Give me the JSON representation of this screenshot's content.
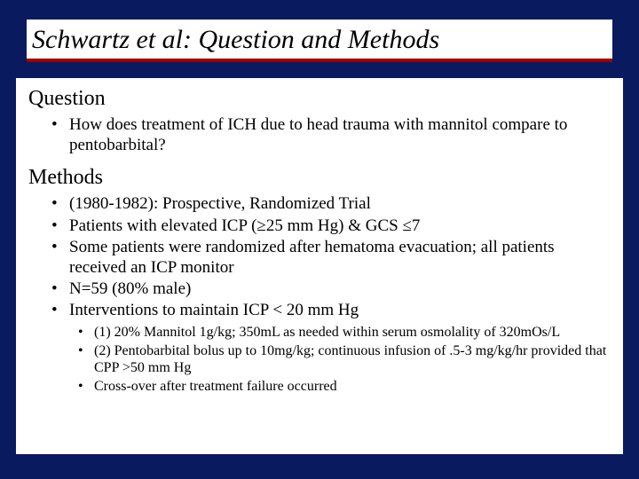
{
  "colors": {
    "background": "#0a1a5e",
    "panel": "#ffffff",
    "rule": "#a00000",
    "text": "#000000"
  },
  "title": "Schwartz et al: Question and Methods",
  "sections": [
    {
      "heading": "Question",
      "bullets": [
        "How does treatment of ICH due to head trauma with mannitol compare to pentobarbital?"
      ]
    },
    {
      "heading": "Methods",
      "bullets": [
        "(1980-1982): Prospective, Randomized Trial",
        "Patients with elevated ICP (≥25 mm Hg) & GCS ≤7",
        "Some patients were randomized after hematoma evacuation; all patients received an ICP monitor",
        "N=59 (80% male)",
        "Interventions to maintain ICP < 20 mm Hg"
      ],
      "subbullets": [
        "(1) 20% Mannitol 1g/kg; 350mL as needed within serum osmolality of 320mOs/L",
        "(2) Pentobarbital bolus up to 10mg/kg; continuous infusion of .5-3 mg/kg/hr provided that CPP >50 mm Hg",
        "Cross-over after treatment failure occurred"
      ]
    }
  ]
}
